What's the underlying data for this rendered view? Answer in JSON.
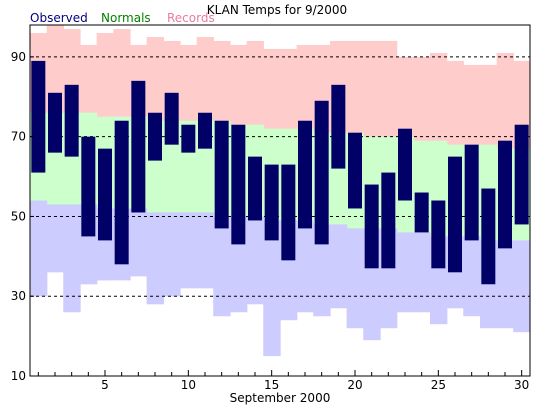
{
  "chart_data": {
    "type": "bar",
    "title": "KLAN Temps for 9/2000",
    "xlabel": "September 2000",
    "ylabel": "",
    "xlim": [
      0.5,
      30.5
    ],
    "ylim": [
      10,
      98
    ],
    "yticks": [
      10,
      30,
      50,
      70,
      90
    ],
    "xticks": [
      5,
      10,
      15,
      20,
      25,
      30
    ],
    "gridlines": [
      30,
      50,
      70,
      90
    ],
    "days": [
      1,
      2,
      3,
      4,
      5,
      6,
      7,
      8,
      9,
      10,
      11,
      12,
      13,
      14,
      15,
      16,
      17,
      18,
      19,
      20,
      21,
      22,
      23,
      24,
      25,
      26,
      27,
      28,
      29,
      30
    ],
    "legend": [
      {
        "name": "Observed",
        "color": "#000080"
      },
      {
        "name": "Normals",
        "color": "#008000"
      },
      {
        "name": "Records",
        "color": "#e87ca0"
      }
    ],
    "series": [
      {
        "name": "Records",
        "color": "#ffcccc",
        "high": [
          96,
          99,
          97,
          93,
          96,
          97,
          93,
          95,
          94,
          93,
          95,
          94,
          93,
          94,
          92,
          92,
          93,
          93,
          94,
          94,
          94,
          94,
          90,
          90,
          91,
          89,
          88,
          88,
          91,
          89
        ],
        "low": [
          30,
          36,
          26,
          33,
          34,
          34,
          35,
          28,
          30,
          32,
          32,
          25,
          26,
          28,
          15,
          24,
          26,
          25,
          27,
          22,
          19,
          22,
          26,
          26,
          23,
          27,
          25,
          22,
          22,
          21
        ]
      },
      {
        "name": "Normals",
        "color": "#ccffcc",
        "high": [
          76,
          76,
          76,
          76,
          75,
          75,
          75,
          74,
          74,
          74,
          74,
          74,
          73,
          73,
          72,
          72,
          72,
          71,
          71,
          71,
          70,
          70,
          70,
          69,
          69,
          68,
          68,
          68,
          67,
          67
        ],
        "low": [
          54,
          53,
          53,
          53,
          52,
          52,
          52,
          51,
          51,
          51,
          51,
          50,
          50,
          50,
          49,
          49,
          49,
          48,
          48,
          47,
          47,
          47,
          46,
          46,
          45,
          45,
          45,
          44,
          44,
          44
        ]
      },
      {
        "name": "Observed",
        "color": "#000066",
        "high": [
          89,
          81,
          83,
          70,
          67,
          74,
          84,
          76,
          81,
          73,
          76,
          74,
          73,
          65,
          63,
          63,
          74,
          79,
          83,
          71,
          58,
          61,
          72,
          56,
          54,
          65,
          68,
          57,
          69,
          73
        ],
        "low": [
          61,
          66,
          65,
          45,
          44,
          38,
          51,
          64,
          68,
          66,
          67,
          47,
          43,
          49,
          44,
          39,
          47,
          43,
          62,
          52,
          37,
          37,
          54,
          46,
          37,
          36,
          44,
          33,
          42,
          48
        ]
      }
    ]
  }
}
